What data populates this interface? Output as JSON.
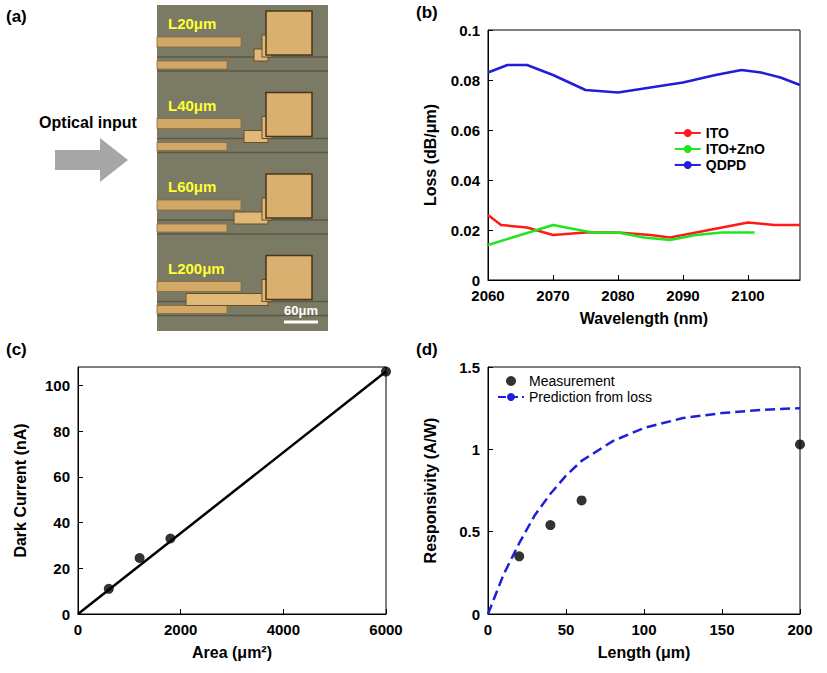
{
  "image_panel": {
    "label": "(a)",
    "arrow_text": "Optical input",
    "device_labels": [
      "L20μm",
      "L40μm",
      "L60μm",
      "L200μm"
    ],
    "scale_bar": "60μm"
  },
  "chart_data": [
    {
      "type": "line",
      "label": "(b)",
      "x_label": "Wavelength (nm)",
      "y_label": "Loss (dB/μm)",
      "xlim": [
        2060,
        2108
      ],
      "xticks": [
        2060,
        2070,
        2080,
        2090,
        2100
      ],
      "ylim": [
        0,
        0.1
      ],
      "yticks": [
        0,
        0.02,
        0.04,
        0.06,
        0.08,
        0.1
      ],
      "grid": false,
      "legend": "right",
      "series": [
        {
          "name": "ITO",
          "color": "#ff1a1a",
          "x": [
            2060,
            2062,
            2066,
            2070,
            2075,
            2080,
            2085,
            2088,
            2092,
            2096,
            2100,
            2104,
            2108
          ],
          "values": [
            0.026,
            0.022,
            0.021,
            0.018,
            0.019,
            0.019,
            0.018,
            0.017,
            0.019,
            0.021,
            0.023,
            0.022,
            0.022
          ]
        },
        {
          "name": "ITO+ZnO",
          "color": "#1fe61f",
          "x": [
            2060,
            2065,
            2070,
            2072,
            2076,
            2080,
            2084,
            2088,
            2092,
            2096,
            2099,
            2101
          ],
          "values": [
            0.014,
            0.018,
            0.022,
            0.021,
            0.019,
            0.019,
            0.017,
            0.016,
            0.018,
            0.019,
            0.019,
            0.019
          ]
        },
        {
          "name": "QDPD",
          "color": "#1f1fd9",
          "x": [
            2060,
            2063,
            2066,
            2070,
            2075,
            2080,
            2085,
            2090,
            2095,
            2099,
            2102,
            2105,
            2108
          ],
          "values": [
            0.083,
            0.086,
            0.086,
            0.082,
            0.076,
            0.075,
            0.077,
            0.079,
            0.082,
            0.084,
            0.083,
            0.081,
            0.078
          ]
        }
      ]
    },
    {
      "type": "scatter",
      "label": "(c)",
      "x_label": "Area (μm²)",
      "y_label": "Dark Current (nA)",
      "xlim": [
        0,
        6000
      ],
      "xticks": [
        0,
        2000,
        4000,
        6000
      ],
      "ylim": [
        0,
        108
      ],
      "yticks": [
        0,
        20,
        40,
        60,
        80,
        100
      ],
      "grid": false,
      "series": [
        {
          "type": "scatter",
          "marker": "circle",
          "color": "#000000",
          "x": [
            600,
            1200,
            1800,
            6000
          ],
          "values": [
            11,
            24.5,
            33,
            106
          ]
        },
        {
          "type": "line",
          "line_style": "solid",
          "color": "#000000",
          "x": [
            0,
            6000
          ],
          "values": [
            0,
            106
          ]
        }
      ]
    },
    {
      "type": "scatter",
      "label": "(d)",
      "x_label": "Length (μm)",
      "y_label": "Responsivity (A/W)",
      "xlim": [
        0,
        200
      ],
      "xticks": [
        0,
        50,
        100,
        150,
        200
      ],
      "ylim": [
        0,
        1.5
      ],
      "yticks": [
        0,
        0.5,
        1,
        1.5
      ],
      "grid": false,
      "legend": "upper left",
      "series": [
        {
          "name": "Measurement",
          "type": "scatter",
          "marker": "circle",
          "color": "#000000",
          "x": [
            20,
            40,
            60,
            200
          ],
          "values": [
            0.35,
            0.54,
            0.69,
            1.03
          ]
        },
        {
          "name": "Prediction from loss",
          "type": "line",
          "line_style": "dashed",
          "color": "#1f1fd9",
          "x": [
            0,
            10,
            20,
            30,
            40,
            50,
            60,
            80,
            100,
            125,
            150,
            175,
            200
          ],
          "values": [
            0,
            0.24,
            0.43,
            0.6,
            0.73,
            0.84,
            0.93,
            1.05,
            1.13,
            1.19,
            1.22,
            1.24,
            1.25
          ]
        }
      ]
    }
  ]
}
